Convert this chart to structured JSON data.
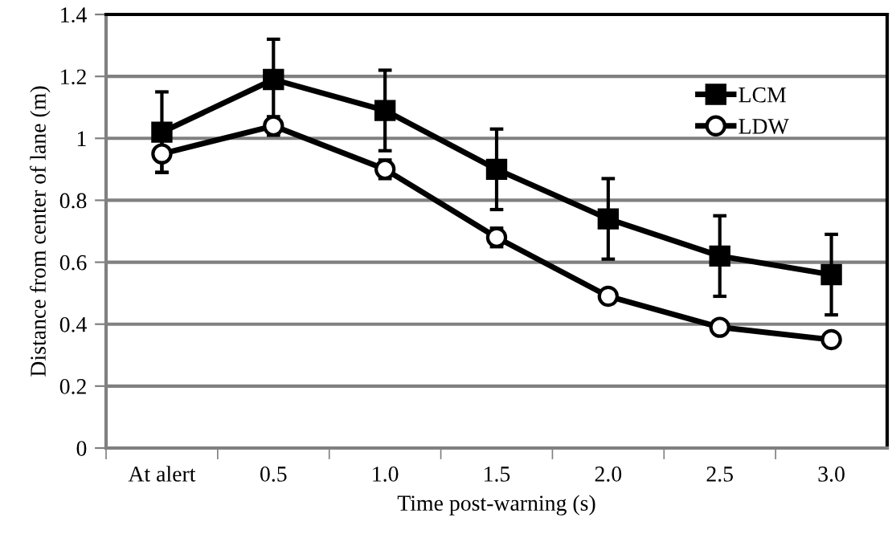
{
  "chart_data": {
    "type": "line",
    "xlabel": "Time post-warning (s)",
    "ylabel": "Distance from center of lane (m)",
    "categories": [
      "At alert",
      "0.5",
      "1.0",
      "1.5",
      "2.0",
      "2.5",
      "3.0"
    ],
    "series": [
      {
        "name": "LCM",
        "color": "#000000",
        "marker": "square",
        "values": [
          1.02,
          1.19,
          1.09,
          0.9,
          0.74,
          0.62,
          0.56
        ],
        "errors": [
          0.13,
          0.13,
          0.13,
          0.13,
          0.13,
          0.13,
          0.13
        ]
      },
      {
        "name": "LDW",
        "color": "#000000",
        "marker": "circle",
        "values": [
          0.95,
          1.04,
          0.9,
          0.68,
          0.49,
          0.39,
          0.35
        ],
        "errors": [
          0.06,
          0.03,
          0.03,
          0.03,
          0.02,
          0.02,
          0.02
        ]
      }
    ],
    "ylim": [
      0,
      1.4
    ],
    "yticks": [
      0,
      0.2,
      0.4,
      0.6,
      0.8,
      1,
      1.2,
      1.4
    ],
    "grid": "y",
    "legend": "top right",
    "line_style": "solid"
  }
}
